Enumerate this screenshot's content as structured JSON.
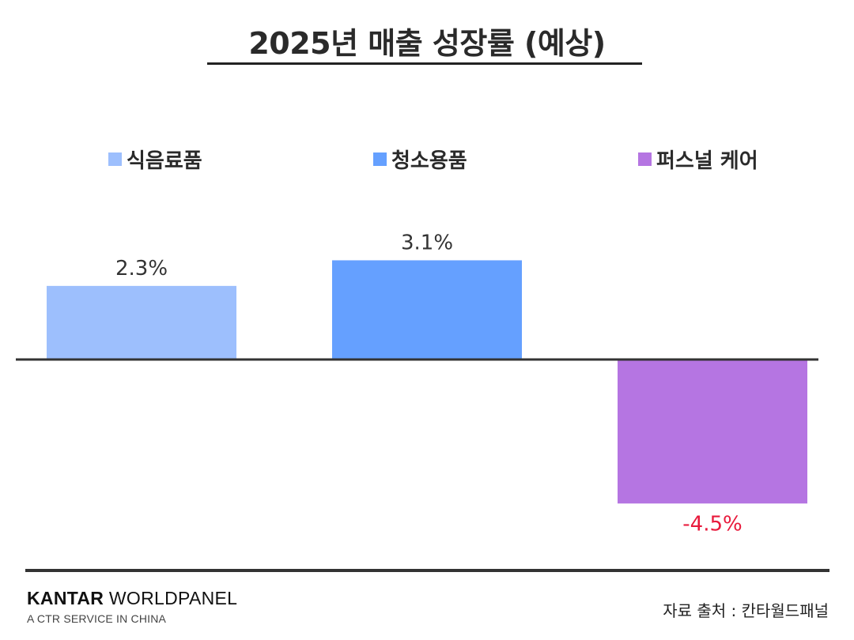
{
  "chart_data": {
    "type": "bar",
    "title": "2025년 매출 성장률 (예상)",
    "categories": [
      "식음료품",
      "청소용품",
      "퍼스널 케어"
    ],
    "values": [
      2.3,
      3.1,
      -4.5
    ],
    "value_labels": [
      "2.3%",
      "3.1%",
      "-4.5%"
    ],
    "unit": "%",
    "colors": [
      "#9dbffd",
      "#65a0ff",
      "#b575e2"
    ],
    "label_colors": [
      "#333333",
      "#333333",
      "#e8193b"
    ],
    "legend_position": "top",
    "ylim": [
      -4.5,
      3.1
    ],
    "grid": false
  },
  "footer": {
    "brand_bold": "KANTAR",
    "brand_rest": "WORLDPANEL",
    "tagline": "A CTR SERVICE IN CHINA",
    "source": "자료 출처 : 칸타월드패널"
  }
}
